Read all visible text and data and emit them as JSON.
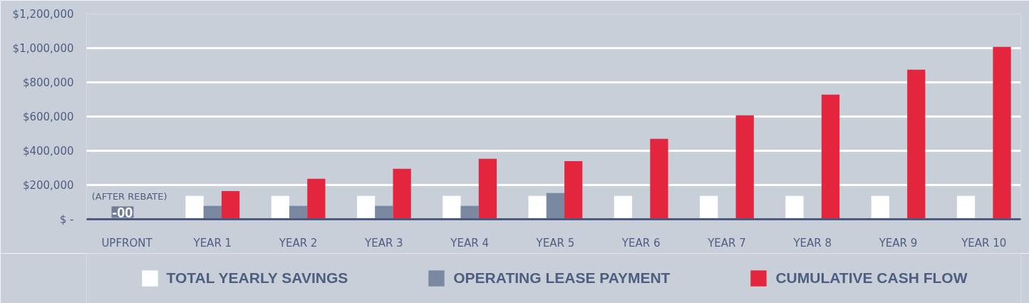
{
  "chart_data": {
    "type": "bar",
    "categories": [
      "UPFRONT",
      "YEAR 1",
      "YEAR 2",
      "YEAR 3",
      "YEAR 4",
      "YEAR 5",
      "YEAR 6",
      "YEAR 7",
      "YEAR 8",
      "YEAR 9",
      "YEAR 10"
    ],
    "series": [
      {
        "name": "TOTAL YEARLY SAVINGS",
        "color": "#ffffff",
        "values": [
          null,
          136000,
          136000,
          136000,
          136000,
          136000,
          136000,
          136000,
          136000,
          136000,
          136000
        ]
      },
      {
        "name": "OPERATING LEASE PAYMENT",
        "color": "#7a88a2",
        "values": [
          null,
          78000,
          78000,
          78000,
          78000,
          153000,
          null,
          null,
          null,
          null,
          null
        ]
      },
      {
        "name": "CUMULATIVE CASH FLOW",
        "color": "#e3263e",
        "values": [
          null,
          165000,
          236000,
          295000,
          353000,
          340000,
          470000,
          607000,
          728000,
          874000,
          1007000
        ]
      }
    ],
    "ylim": [
      0,
      1200000
    ],
    "yticks": [
      {
        "value": 0,
        "label": "$ -"
      },
      {
        "value": 200000,
        "label": "$200,000"
      },
      {
        "value": 400000,
        "label": "$400,000"
      },
      {
        "value": 600000,
        "label": "$600,000"
      },
      {
        "value": 800000,
        "label": "$800,000"
      },
      {
        "value": 1000000,
        "label": "$1,000,000"
      },
      {
        "value": 1200000,
        "label": "$1,200,000"
      }
    ],
    "grid": "y",
    "legend": "bottom",
    "annotations": [
      "(AFTER REBATE)",
      "-00"
    ]
  }
}
